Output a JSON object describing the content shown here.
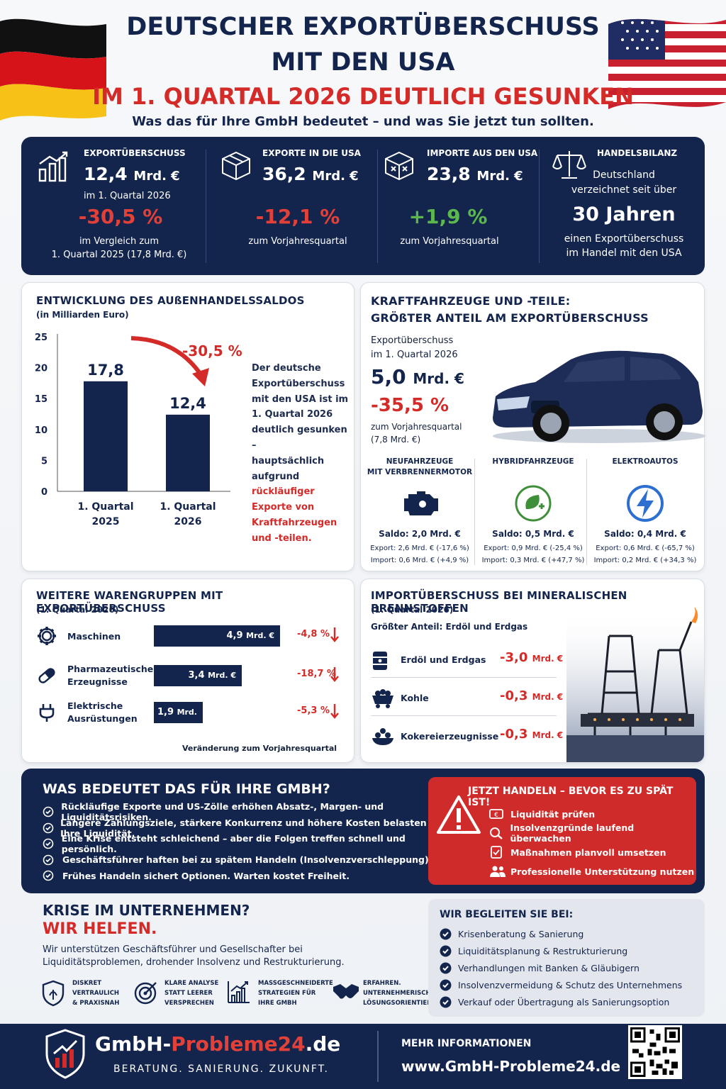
{
  "header": {
    "title_line1": "DEUTSCHER EXPORTÜBERSCHUSS",
    "title_line2": "MIT DEN USA",
    "title_line3": "IM 1. QUARTAL 2026 DEUTLICH GESUNKEN",
    "subtitle": "Was das für Ihre GmbH bedeutet – und was Sie jetzt tun sollten."
  },
  "kpis": [
    {
      "label": "EXPORTÜBERSCHUSS",
      "value": "12,4",
      "unit": "Mrd. €",
      "note": "im 1. Quartal 2026",
      "change": "-30,5 %",
      "foot1": "im Vergleich zum",
      "foot2": "1. Quartal 2025 (17,8 Mrd. €)",
      "icon": "bar-chart-icon"
    },
    {
      "label": "EXPORTE IN DIE USA",
      "value": "36,2",
      "unit": "Mrd. €",
      "change": "-12,1 %",
      "foot1": "zum Vorjahresquartal",
      "icon": "box-icon"
    },
    {
      "label": "IMPORTE AUS DEN USA",
      "value": "23,8",
      "unit": "Mrd. €",
      "change": "+1,9 %",
      "foot1": "zum Vorjahresquartal",
      "icon": "box-icon"
    },
    {
      "label": "HANDELSBILANZ",
      "line1": "Deutschland",
      "line2": "verzeichnet seit über",
      "big": "30 Jahren",
      "line3": "einen Exportüberschuss",
      "line4": "im Handel mit den USA",
      "icon": "scales-icon"
    }
  ],
  "saldo": {
    "title": "ENTWICKLUNG DES AUßENHANDELSSALDOS",
    "subtitle": "(in Milliarden Euro)",
    "change": "-30,5 %",
    "text_pre": "Der deutsche Exportüberschuss mit den USA ist im 1. Quartal 2026 deutlich gesunken – hauptsächlich aufgrund ",
    "text_hl": "rückläufiger Exporte von Kraftfahrzeugen und -teilen.",
    "text_lines": [
      "Der deutsche",
      "Exportüberschuss",
      "mit den USA ist im",
      "1. Quartal 2026",
      "deutlich gesunken –",
      "hauptsächlich",
      "aufgrund"
    ],
    "hl_lines": [
      "rückläufiger",
      "Exporte von",
      "Kraftfahrzeugen",
      "und -teilen."
    ],
    "hl_first": "rückläufiger"
  },
  "chart_data": {
    "type": "bar",
    "title": "ENTWICKLUNG DES AUßENHANDELSSALDOS",
    "ylabel": "(in Milliarden Euro)",
    "categories": [
      "1. Quartal 2025",
      "1. Quartal 2026"
    ],
    "cat_line1": [
      "1. Quartal",
      "1. Quartal"
    ],
    "cat_line2": [
      "2025",
      "2026"
    ],
    "values": [
      17.8,
      12.4
    ],
    "value_labels": [
      "17,8",
      "12,4"
    ],
    "yticks": [
      0,
      5,
      10,
      15,
      20,
      25
    ],
    "ylim": [
      0,
      25
    ],
    "color": "#14254d"
  },
  "kfz": {
    "title1": "KRAFTFAHRZEUGE UND -TEILE:",
    "title2": "GRÖßTER ANTEIL AM EXPORTÜBERSCHUSS",
    "label1": "Exportüberschuss",
    "label2": "im 1. Quartal 2026",
    "value": "5,0",
    "unit": "Mrd. €",
    "change": "-35,5 %",
    "foot1": "zum Vorjahresquartal",
    "foot2": "(7,8 Mrd. €)",
    "types": [
      {
        "name1": "NEUFAHRZEUGE",
        "name2": "MIT VERBRENNERMOTOR",
        "saldo": "Saldo: 2,0 Mrd. €",
        "export": "Export: 2,6 Mrd. € (-17,6 %)",
        "import": "Import: 0,6 Mrd. € (+4,9 %)",
        "icon": "engine-icon"
      },
      {
        "name1": "HYBRIDFAHRZEUGE",
        "name2": "",
        "saldo": "Saldo: 0,5 Mrd. €",
        "export": "Export: 0,9 Mrd. € (-25,4 %)",
        "import": "Import: 0,3 Mrd. € (+47,7 %)",
        "icon": "leaf-plug-icon"
      },
      {
        "name1": "ELEKTROAUTOS",
        "name2": "",
        "saldo": "Saldo: 0,4 Mrd. €",
        "export": "Export: 0,6 Mrd. € (-65,7 %)",
        "import": "Import: 0,2 Mrd. € (+34,3 %)",
        "icon": "lightning-icon"
      }
    ]
  },
  "waren": {
    "title": "WEITERE WARENGRUPPEN MIT EXPORTÜBERSCHUSS",
    "subtitle": "(1. Quartal 2026)",
    "footer": "Veränderung zum Vorjahresquartal",
    "items": [
      {
        "name1": "Maschinen",
        "name2": "",
        "value": "4,9",
        "unit": "Mrd. €",
        "amount": 4.9,
        "change": "-4,8 %",
        "icon": "gear-icon"
      },
      {
        "name1": "Pharmazeutische",
        "name2": "Erzeugnisse",
        "value": "3,4",
        "unit": "Mrd. €",
        "amount": 3.4,
        "change": "-18,7 %",
        "icon": "pill-icon"
      },
      {
        "name1": "Elektrische",
        "name2": "Ausrüstungen",
        "value": "1,9",
        "unit": "Mrd. €",
        "amount": 1.9,
        "change": "-5,3 %",
        "icon": "plug-icon"
      }
    ]
  },
  "import": {
    "title": "IMPORTÜBERSCHUSS BEI MINERALISCHEN BRENNSTOFFEN",
    "subtitle": "(1. Quartal 2026)",
    "subtitle2": "Größter Anteil: Erdöl und Erdgas",
    "items": [
      {
        "name": "Erdöl und Erdgas",
        "value": "-3,0",
        "unit": "Mrd. €",
        "icon": "barrel-icon"
      },
      {
        "name": "Kohle",
        "value": "-0,3",
        "unit": "Mrd. €",
        "icon": "coal-cart-icon"
      },
      {
        "name": "Kokereierzeugnisse",
        "value": "-0,3",
        "unit": "Mrd. €",
        "icon": "coke-icon"
      }
    ]
  },
  "gmbh": {
    "title": "WAS BEDEUTET DAS FÜR IHRE GMBH?",
    "items": [
      "Rückläufige Exporte und US-Zölle erhöhen Absatz-, Margen- und Liquiditätsrisiken.",
      "Längere Zahlungsziele, stärkere Konkurrenz und höhere Kosten belasten Ihre Liquidität.",
      "Eine Krise entsteht schleichend – aber die Folgen treffen schnell und persönlich.",
      "Geschäftsführer haften bei zu spätem Handeln (Insolvenzverschleppung).",
      "Frühes Handeln sichert Optionen. Warten kostet Freiheit."
    ]
  },
  "action": {
    "title": "JETZT HANDELN – BEVOR ES ZU SPÄT IST!",
    "items": [
      {
        "label": "Liquidität prüfen",
        "icon": "money-icon"
      },
      {
        "label": "Insolvenzgründe laufend überwachen",
        "icon": "magnifier-icon"
      },
      {
        "label": "Maßnahmen planvoll umsetzen",
        "icon": "checklist-icon"
      },
      {
        "label": "Professionelle Unterstützung nutzen",
        "icon": "people-icon"
      }
    ]
  },
  "krise": {
    "title1": "KRISE IM UNTERNEHMEN?",
    "title2": "WIR HELFEN.",
    "text1": "Wir unterstützen Geschäftsführer und Gesellschafter bei",
    "text2": "Liquiditätsproblemen, drohender Insolvenz und Restrukturierung.",
    "features": [
      {
        "l1": "DISKRET",
        "l2": "VERTRAULICH",
        "l3": "& PRAXISNAH",
        "icon": "shield-icon"
      },
      {
        "l1": "KLARE ANALYSE",
        "l2": "STATT LEERER",
        "l3": "VERSPRECHEN",
        "icon": "target-icon"
      },
      {
        "l1": "MASSGESCHNEIDERTE",
        "l2": "STRATEGIEN FÜR",
        "l3": "IHRE GMBH",
        "icon": "growth-icon"
      },
      {
        "l1": "ERFAHREN.",
        "l2": "UNTERNEHMERISCH.",
        "l3": "LÖSUNGSORIENTIERT.",
        "icon": "handshake-icon"
      }
    ]
  },
  "begleiten": {
    "title": "WIR BEGLEITEN SIE BEI:",
    "items": [
      "Krisenberatung & Sanierung",
      "Liquiditätsplanung & Restrukturierung",
      "Verhandlungen mit Banken & Gläubigern",
      "Insolvenzvermeidung & Schutz des Unternehmens",
      "Verkauf oder Übertragung als Sanierungsoption"
    ]
  },
  "footer": {
    "brand_a": "GmbH-",
    "brand_b": "Probleme24",
    "brand_c": ".de",
    "tagline": "BERATUNG. SANIERUNG. ZUKUNFT.",
    "info_label": "MEHR INFORMATIONEN",
    "url": "www.GmbH-Probleme24.de"
  },
  "colors": {
    "navy": "#14254d",
    "red": "#d42a28",
    "green": "#3f8f3a",
    "blue": "#2d6fd1"
  }
}
